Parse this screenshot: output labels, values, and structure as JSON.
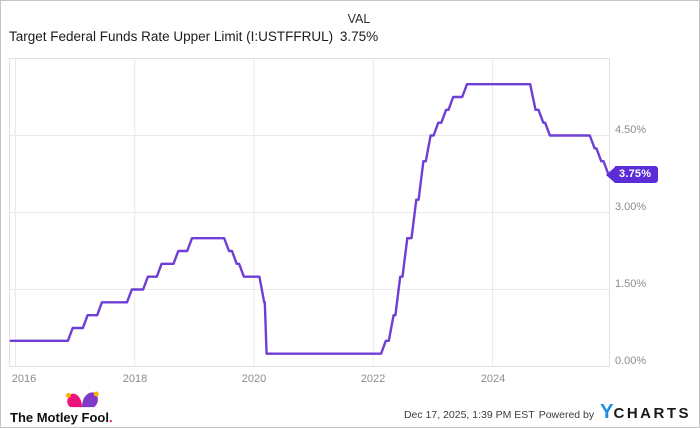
{
  "header": {
    "title": "Target Federal Funds Rate Upper Limit (I:USTFFRUL)",
    "val_label": "VAL",
    "val_value": "3.75%"
  },
  "chart_data": {
    "type": "line",
    "title": "Target Federal Funds Rate Upper Limit",
    "series": [
      {
        "name": "I:USTFFRUL",
        "points": [
          [
            2015.92,
            0.5
          ],
          [
            2016.88,
            0.5
          ],
          [
            2016.96,
            0.75
          ],
          [
            2017.13,
            0.75
          ],
          [
            2017.21,
            1.0
          ],
          [
            2017.37,
            1.0
          ],
          [
            2017.45,
            1.25
          ],
          [
            2017.87,
            1.25
          ],
          [
            2017.95,
            1.5
          ],
          [
            2018.14,
            1.5
          ],
          [
            2018.22,
            1.75
          ],
          [
            2018.37,
            1.75
          ],
          [
            2018.45,
            2.0
          ],
          [
            2018.65,
            2.0
          ],
          [
            2018.73,
            2.25
          ],
          [
            2018.88,
            2.25
          ],
          [
            2018.96,
            2.5
          ],
          [
            2019.5,
            2.5
          ],
          [
            2019.58,
            2.25
          ],
          [
            2019.63,
            2.25
          ],
          [
            2019.71,
            2.0
          ],
          [
            2019.75,
            2.0
          ],
          [
            2019.83,
            1.75
          ],
          [
            2020.09,
            1.75
          ],
          [
            2020.17,
            1.25
          ],
          [
            2020.18,
            1.25
          ],
          [
            2020.21,
            0.25
          ],
          [
            2022.13,
            0.25
          ],
          [
            2022.21,
            0.5
          ],
          [
            2022.26,
            0.5
          ],
          [
            2022.34,
            1.0
          ],
          [
            2022.37,
            1.0
          ],
          [
            2022.45,
            1.75
          ],
          [
            2022.49,
            1.75
          ],
          [
            2022.57,
            2.5
          ],
          [
            2022.64,
            2.5
          ],
          [
            2022.72,
            3.25
          ],
          [
            2022.76,
            3.25
          ],
          [
            2022.84,
            4.0
          ],
          [
            2022.88,
            4.0
          ],
          [
            2022.96,
            4.5
          ],
          [
            2023.01,
            4.5
          ],
          [
            2023.09,
            4.75
          ],
          [
            2023.14,
            4.75
          ],
          [
            2023.22,
            5.0
          ],
          [
            2023.26,
            5.0
          ],
          [
            2023.34,
            5.25
          ],
          [
            2023.49,
            5.25
          ],
          [
            2023.57,
            5.5
          ],
          [
            2024.63,
            5.5
          ],
          [
            2024.72,
            5.0
          ],
          [
            2024.77,
            5.0
          ],
          [
            2024.85,
            4.75
          ],
          [
            2024.88,
            4.75
          ],
          [
            2024.96,
            4.5
          ],
          [
            2025.63,
            4.5
          ],
          [
            2025.71,
            4.25
          ],
          [
            2025.74,
            4.25
          ],
          [
            2025.82,
            4.0
          ],
          [
            2025.86,
            4.0
          ],
          [
            2025.94,
            3.75
          ],
          [
            2025.96,
            3.75
          ]
        ]
      }
    ],
    "x_ticks": [
      {
        "v": 2016,
        "label": "2016"
      },
      {
        "v": 2018,
        "label": "2018"
      },
      {
        "v": 2020,
        "label": "2020"
      },
      {
        "v": 2022,
        "label": "2022"
      },
      {
        "v": 2024,
        "label": "2024"
      }
    ],
    "y_ticks": [
      {
        "v": 0,
        "label": "0.00%"
      },
      {
        "v": 1.5,
        "label": "1.50%"
      },
      {
        "v": 3,
        "label": "3.00%"
      },
      {
        "v": 4.5,
        "label": "4.50%"
      }
    ],
    "x_range": [
      2015.9,
      2025.96
    ],
    "y_range": [
      0,
      6
    ],
    "grid": true,
    "legend": "none",
    "y_axis_side": "right",
    "last_value_label": "3.75%",
    "colors": {
      "line": "#6e3ed6",
      "badge": "#5b2dd6",
      "grid": "#e9e9e9",
      "plot_border": "#e0e0e0",
      "tick_text": "#8c8c8c"
    }
  },
  "footer": {
    "brand_text": "The Motley Fool",
    "brand_period": ".",
    "timestamp": "Dec 17, 2025, 1:39 PM EST",
    "powered_by": "Powered by",
    "ycharts_y": "Y",
    "ycharts_rest": "CHARTS"
  }
}
